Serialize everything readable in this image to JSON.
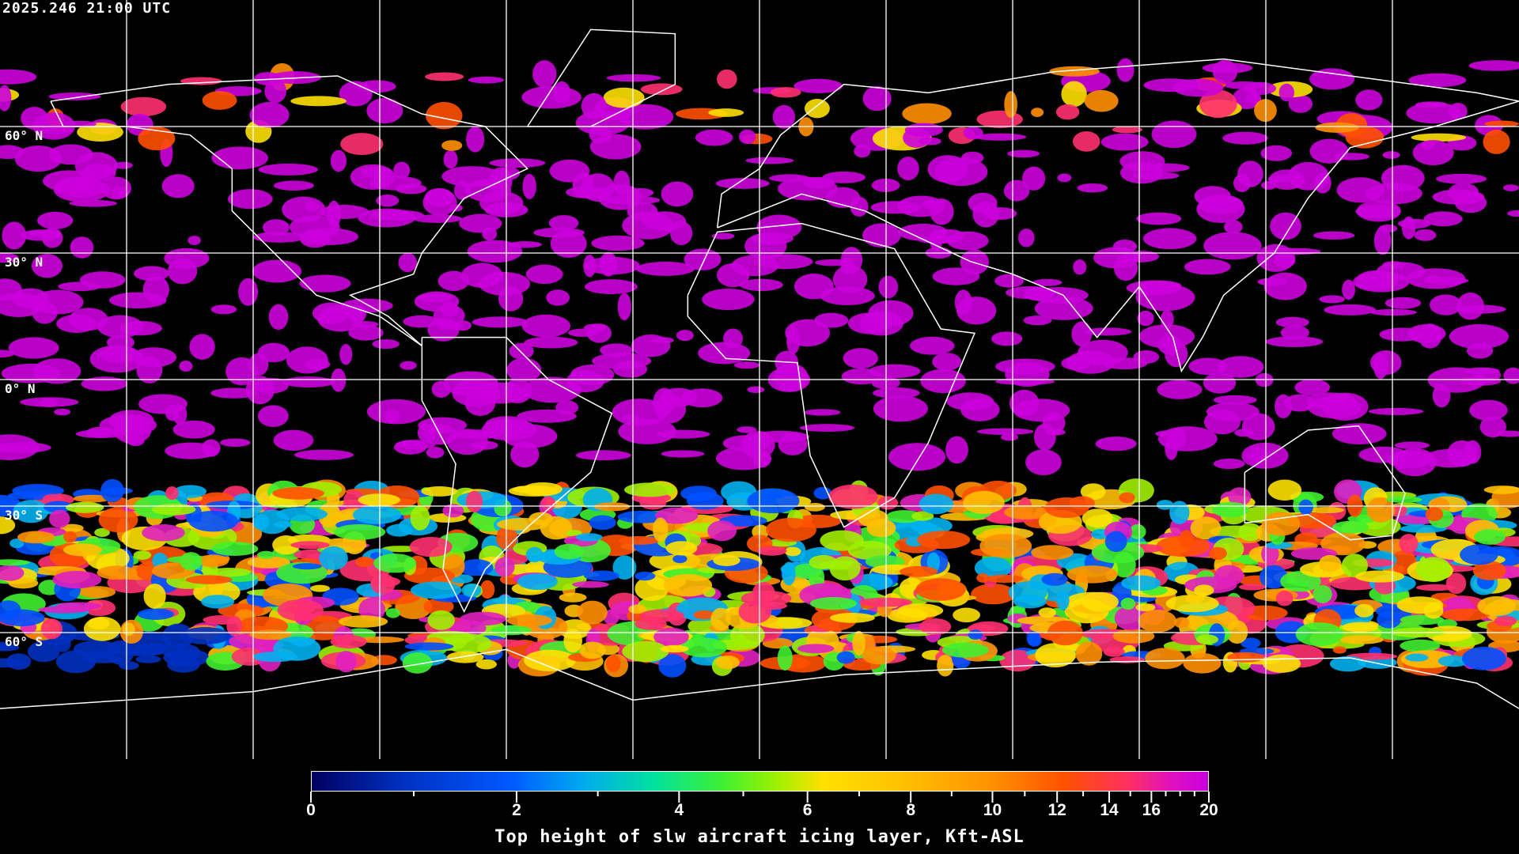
{
  "timestamp": "2025.246 21:00 UTC",
  "map": {
    "projection": "equirectangular",
    "grid_spacing_deg": 30,
    "lat_labels": [
      "60° N",
      "30° N",
      "0° N",
      "30° S",
      "60° S"
    ],
    "lat_values": [
      60,
      30,
      0,
      -30,
      -60
    ]
  },
  "colorbar": {
    "title": "Top height of slw aircraft icing layer, Kft-ASL",
    "min": 0,
    "max": 20,
    "tick_labels": [
      "0",
      "2",
      "4",
      "6",
      "8",
      "10",
      "12",
      "14",
      "16",
      "20"
    ],
    "tick_values": [
      0,
      2,
      4,
      6,
      8,
      10,
      12,
      14,
      16,
      20
    ],
    "minor_ticks": [
      1,
      3,
      5,
      7,
      9,
      11,
      13,
      15,
      17,
      18,
      19
    ],
    "colors": {
      "low": "#000060",
      "mid": "#ffe000",
      "high": "#c800e0"
    }
  }
}
